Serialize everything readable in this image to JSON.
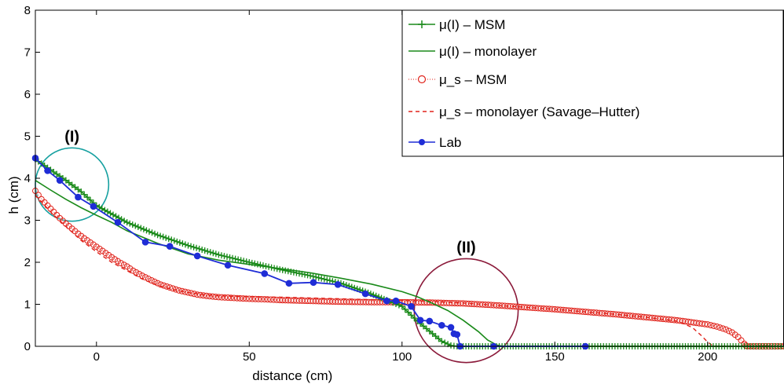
{
  "chart_data": {
    "type": "line",
    "xlabel": "distance (cm)",
    "ylabel": "h (cm)",
    "xlim": [
      -20,
      225
    ],
    "ylim": [
      0,
      8
    ],
    "x_ticks": [
      0,
      50,
      100,
      150,
      200
    ],
    "y_ticks": [
      0,
      1,
      2,
      3,
      4,
      5,
      6,
      7,
      8
    ],
    "grid": false,
    "legend_position": "top-right",
    "annotations": [
      {
        "text": "(I)",
        "circle_center": [
          -8,
          3.85
        ],
        "circle_radius_x": 12,
        "circle_color": "#16a0a0"
      },
      {
        "text": "(II)",
        "circle_center": [
          121,
          0.85
        ],
        "circle_radius_x": 17,
        "circle_color": "#8b1a3a"
      }
    ],
    "series": [
      {
        "name": "μ(I) – MSM",
        "color": "#1a8a1a",
        "style": "solid-plus",
        "x": [
          -20,
          -15,
          -10,
          -5,
          0,
          10,
          20,
          30,
          40,
          50,
          60,
          70,
          80,
          88,
          95,
          100,
          105,
          110,
          113,
          116,
          118,
          120,
          130,
          150,
          180,
          200,
          225
        ],
        "y": [
          4.45,
          4.2,
          3.95,
          3.68,
          3.35,
          2.95,
          2.65,
          2.4,
          2.18,
          2.0,
          1.83,
          1.68,
          1.5,
          1.3,
          1.1,
          0.95,
          0.6,
          0.3,
          0.12,
          0.02,
          0.0,
          0.0,
          0.0,
          0.0,
          0.0,
          0.0,
          0.0
        ]
      },
      {
        "name": "μ(I) – monolayer",
        "color": "#1a8a1a",
        "style": "solid",
        "x": [
          -20,
          -15,
          -10,
          -5,
          0,
          5,
          10,
          20,
          30,
          40,
          50,
          60,
          70,
          80,
          90,
          100,
          105,
          110,
          115,
          120,
          125,
          128,
          131,
          133,
          140,
          160,
          225
        ],
        "y": [
          3.95,
          3.72,
          3.5,
          3.3,
          3.12,
          2.95,
          2.75,
          2.45,
          2.2,
          2.05,
          1.95,
          1.85,
          1.75,
          1.62,
          1.48,
          1.3,
          1.18,
          1.02,
          0.85,
          0.62,
          0.35,
          0.15,
          0.03,
          0.0,
          0.0,
          0.0,
          0.0
        ]
      },
      {
        "name": "μ_s – MSM",
        "color": "#e0221a",
        "style": "dotted-circle",
        "x": [
          -20,
          -18,
          -16,
          -14,
          -12,
          -10,
          -8,
          -6,
          -4,
          -2,
          0,
          2,
          4,
          6,
          8,
          10,
          12,
          15,
          18,
          21,
          24,
          27,
          30,
          33,
          36,
          40,
          45,
          50,
          55,
          60,
          70,
          80,
          90,
          100,
          110,
          120,
          130,
          140,
          150,
          160,
          170,
          180,
          190,
          200,
          203,
          206,
          208,
          210,
          211,
          212,
          212.5,
          213,
          214,
          216,
          220,
          225
        ],
        "y": [
          3.7,
          3.5,
          3.35,
          3.2,
          3.05,
          2.92,
          2.8,
          2.68,
          2.57,
          2.47,
          2.37,
          2.27,
          2.17,
          2.07,
          1.98,
          1.9,
          1.8,
          1.68,
          1.57,
          1.47,
          1.4,
          1.33,
          1.28,
          1.23,
          1.2,
          1.17,
          1.15,
          1.13,
          1.12,
          1.1,
          1.08,
          1.06,
          1.05,
          1.05,
          1.04,
          1.02,
          0.98,
          0.93,
          0.88,
          0.82,
          0.76,
          0.69,
          0.62,
          0.52,
          0.47,
          0.4,
          0.33,
          0.22,
          0.14,
          0.06,
          0.02,
          0.0,
          0.0,
          0.0,
          0.0,
          0.0
        ]
      },
      {
        "name": "μ_s – monolayer (Savage–Hutter)",
        "color": "#e0221a",
        "style": "dashed",
        "x": [
          -20,
          -15,
          -10,
          -5,
          0,
          5,
          10,
          15,
          20,
          25,
          30,
          35,
          40,
          50,
          60,
          70,
          80,
          90,
          100,
          110,
          120,
          130,
          140,
          150,
          160,
          170,
          180,
          190,
          195,
          198,
          200,
          202,
          210,
          225
        ],
        "y": [
          3.6,
          3.2,
          2.85,
          2.52,
          2.25,
          2.0,
          1.8,
          1.6,
          1.45,
          1.35,
          1.28,
          1.23,
          1.2,
          1.18,
          1.17,
          1.15,
          1.13,
          1.11,
          1.09,
          1.07,
          1.03,
          0.98,
          0.93,
          0.88,
          0.82,
          0.76,
          0.69,
          0.6,
          0.45,
          0.25,
          0.1,
          0.0,
          0.0,
          0.0
        ]
      },
      {
        "name": "Lab",
        "color": "#1f2dd6",
        "style": "solid-dot",
        "x": [
          -20,
          -16,
          -12,
          -6,
          -1,
          7,
          16,
          24,
          33,
          43,
          55,
          63,
          71,
          79,
          88,
          95,
          98,
          103,
          106,
          109,
          113,
          116,
          117,
          118,
          119,
          130,
          160
        ],
        "y": [
          4.48,
          4.18,
          3.95,
          3.55,
          3.33,
          2.95,
          2.48,
          2.38,
          2.15,
          1.93,
          1.73,
          1.5,
          1.52,
          1.47,
          1.25,
          1.08,
          1.08,
          0.95,
          0.62,
          0.6,
          0.5,
          0.45,
          0.3,
          0.28,
          0.0,
          0.0,
          0.0
        ]
      }
    ]
  }
}
